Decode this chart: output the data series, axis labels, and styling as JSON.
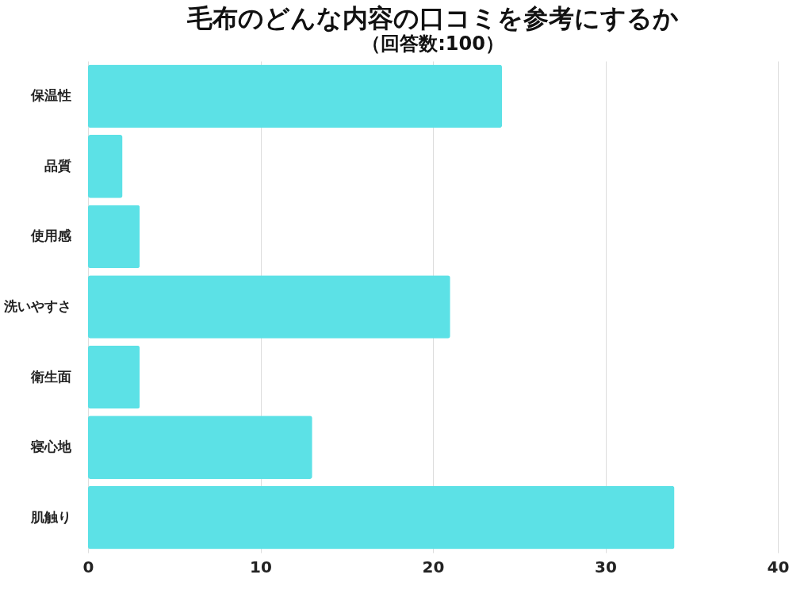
{
  "chart_data": {
    "type": "bar",
    "orientation": "horizontal",
    "title": "毛布のどんな内容の口コミを参考にするか",
    "subtitle": "（回答数:100）",
    "categories": [
      "保温性",
      "品質",
      "使用感",
      "洗いやすさ",
      "衛生面",
      "寝心地",
      "肌触り"
    ],
    "values": [
      24,
      2,
      3,
      21,
      3,
      13,
      34
    ],
    "color": "#5ce1e6",
    "xlim": [
      0,
      40
    ],
    "xticks": [
      0,
      10,
      20,
      30,
      40
    ],
    "grid": "x"
  }
}
